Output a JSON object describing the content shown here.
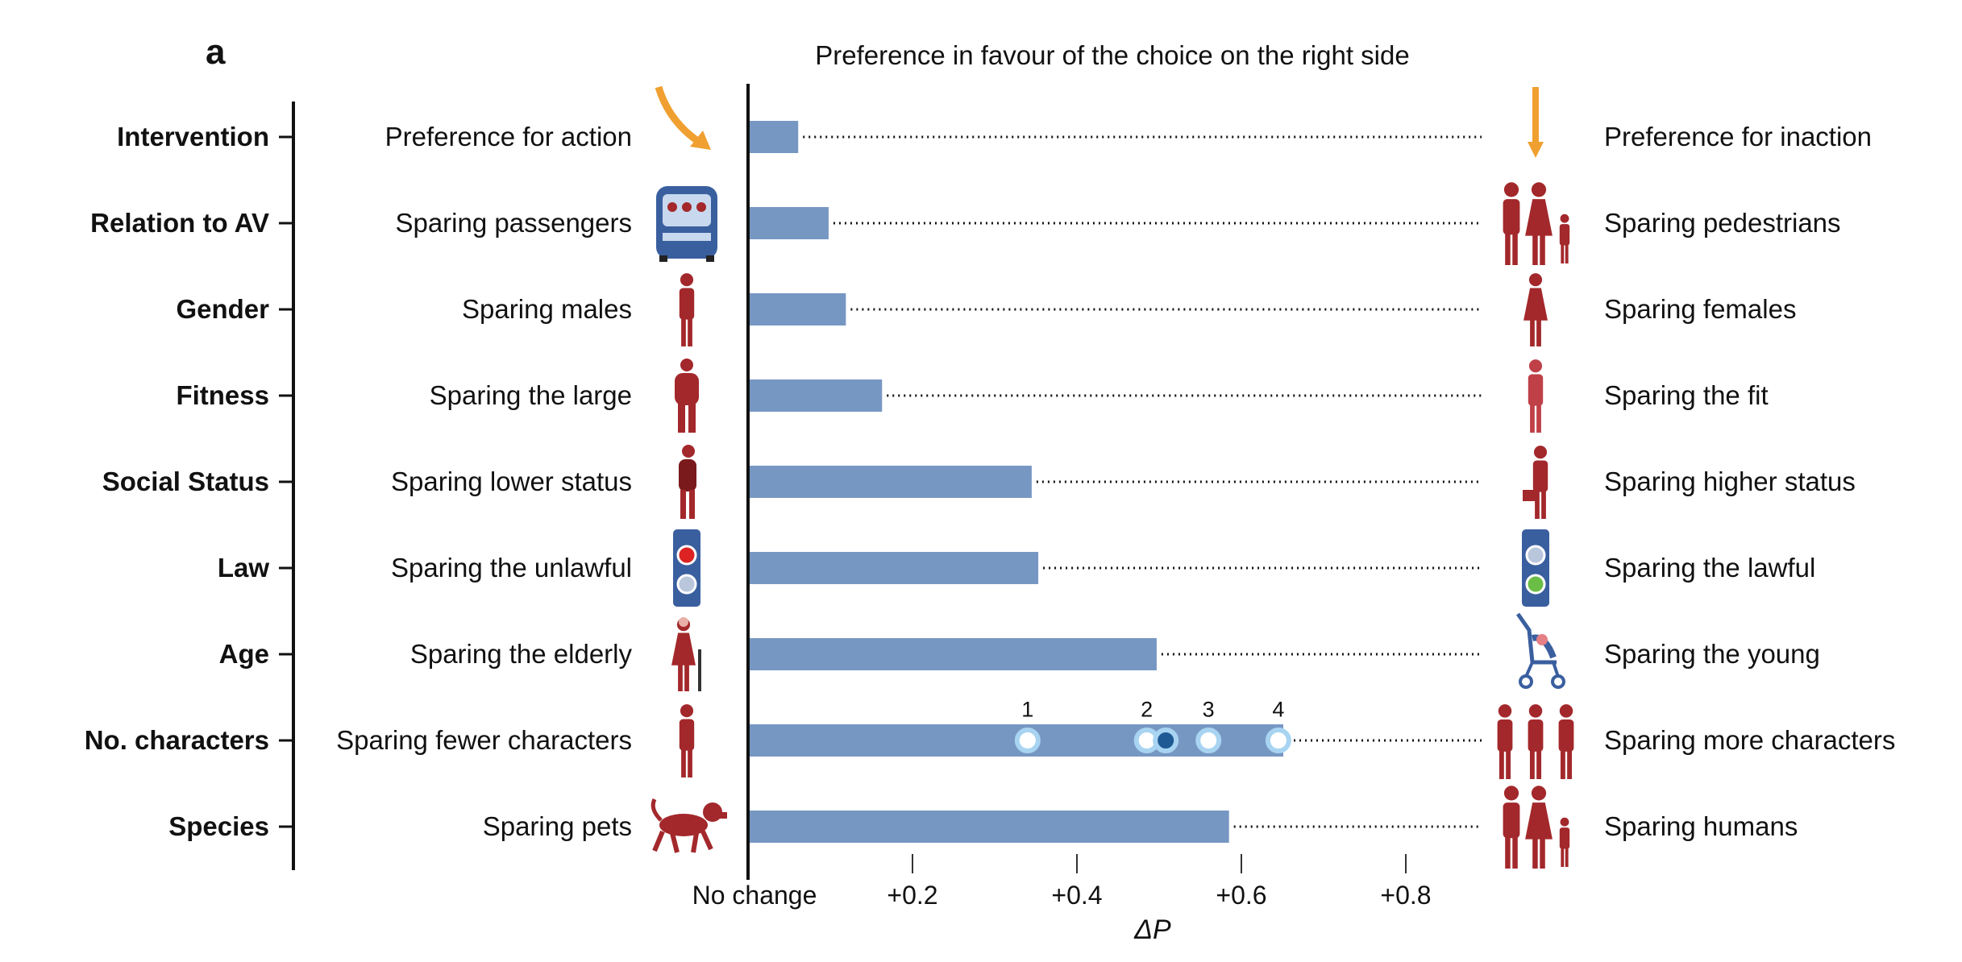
{
  "panel_label": "a",
  "chart_data": {
    "type": "bar",
    "title": "Preference in favour of the choice on the right side",
    "xlabel": "ΔP",
    "xlim": [
      0,
      0.9
    ],
    "x_ticks": [
      {
        "value": 0,
        "label": "No change"
      },
      {
        "value": 0.2,
        "label": "+0.2"
      },
      {
        "value": 0.4,
        "label": "+0.4"
      },
      {
        "value": 0.6,
        "label": "+0.6"
      },
      {
        "value": 0.8,
        "label": "+0.8"
      }
    ],
    "rows": [
      {
        "dimension": "Intervention",
        "left": "Preference for action",
        "right": "Preference for inaction",
        "value": 0.061,
        "left_icon": "curved-arrow-icon",
        "right_icon": "straight-arrow-icon"
      },
      {
        "dimension": "Relation to AV",
        "left": "Sparing passengers",
        "right": "Sparing pedestrians",
        "value": 0.098,
        "left_icon": "car-passengers-icon",
        "right_icon": "pedestrians-icon"
      },
      {
        "dimension": "Gender",
        "left": "Sparing males",
        "right": "Sparing females",
        "value": 0.119,
        "left_icon": "male-icon",
        "right_icon": "female-icon"
      },
      {
        "dimension": "Fitness",
        "left": "Sparing the large",
        "right": "Sparing the fit",
        "value": 0.163,
        "left_icon": "large-person-icon",
        "right_icon": "athlete-icon"
      },
      {
        "dimension": "Social Status",
        "left": "Sparing lower status",
        "right": "Sparing higher status",
        "value": 0.345,
        "left_icon": "homeless-person-icon",
        "right_icon": "executive-icon"
      },
      {
        "dimension": "Law",
        "left": "Sparing the unlawful",
        "right": "Sparing the lawful",
        "value": 0.353,
        "left_icon": "red-light-icon",
        "right_icon": "green-light-icon"
      },
      {
        "dimension": "Age",
        "left": "Sparing the elderly",
        "right": "Sparing the young",
        "value": 0.497,
        "left_icon": "elderly-person-icon",
        "right_icon": "stroller-icon"
      },
      {
        "dimension": "No. characters",
        "left": "Sparing fewer characters",
        "right": "Sparing more characters",
        "value": 0.651,
        "left_icon": "single-person-icon",
        "right_icon": "group-of-people-icon",
        "markers": [
          {
            "label": "1",
            "value": 0.34
          },
          {
            "label": "2",
            "value": 0.485
          },
          {
            "label": "",
            "value": 0.508,
            "highlight": true
          },
          {
            "label": "3",
            "value": 0.56
          },
          {
            "label": "4",
            "value": 0.645
          }
        ]
      },
      {
        "dimension": "Species",
        "left": "Sparing pets",
        "right": "Sparing humans",
        "value": 0.585,
        "left_icon": "dog-icon",
        "right_icon": "humans-icon"
      }
    ]
  },
  "colors": {
    "bar": "#7797c3",
    "marker_ring": "#a8d4f2",
    "marker_fill": "#ffffff",
    "marker_highlight": "#1f5a94",
    "icon_red": "#a3282b",
    "icon_blue": "#3a5f9f",
    "arrow_orange": "#f0a030",
    "axis": "#111111"
  }
}
